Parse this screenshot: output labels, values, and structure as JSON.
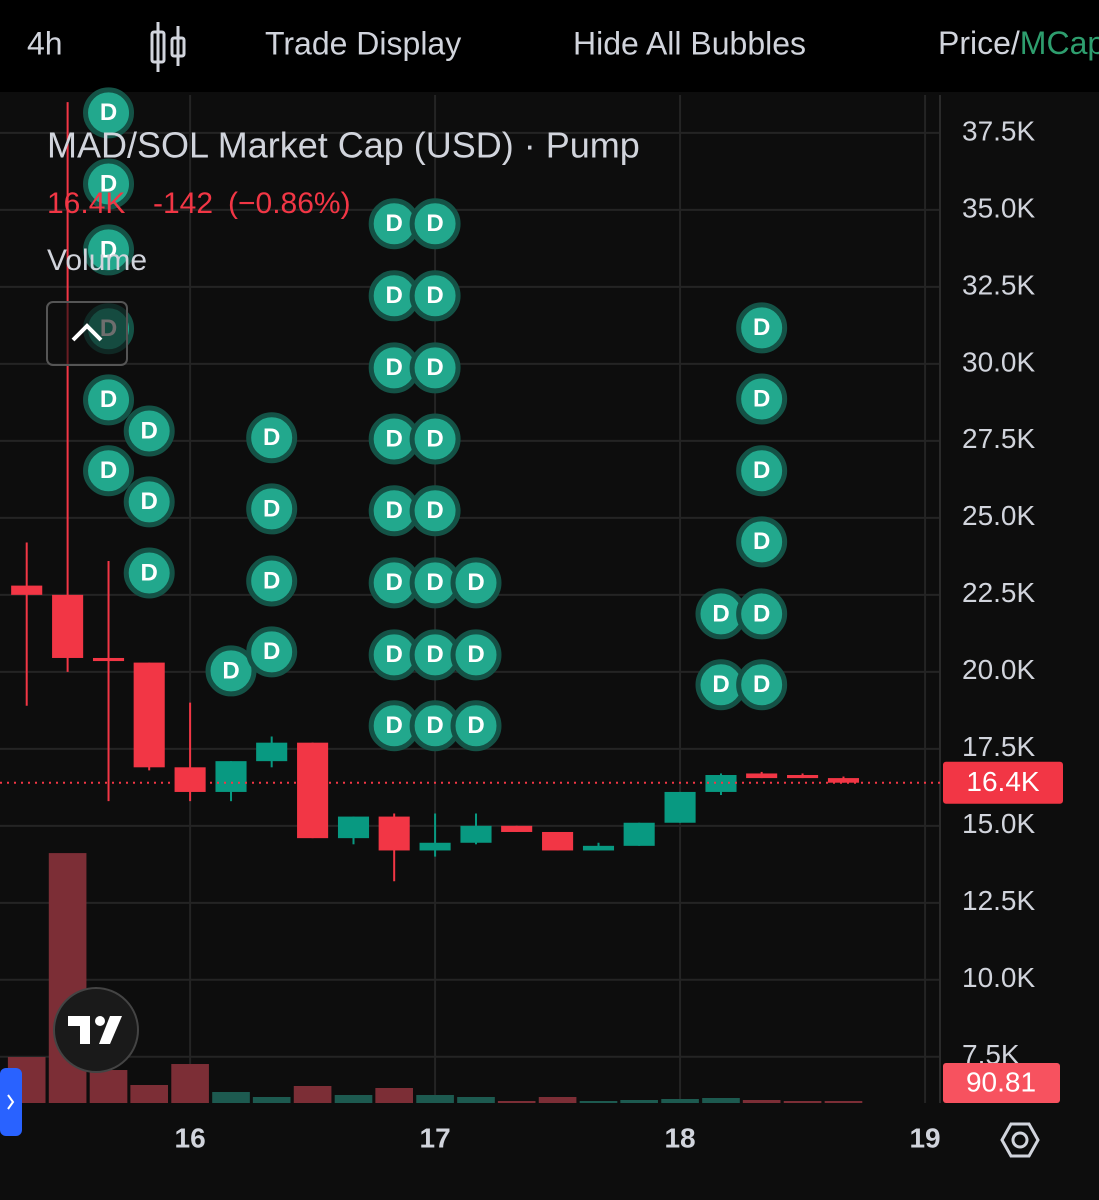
{
  "toolbar": {
    "interval": "4h",
    "trade_display": "Trade Display",
    "hide_bubbles": "Hide All Bubbles",
    "price": "Price/",
    "mcap": "MCap"
  },
  "chart_data": {
    "type": "candlestick",
    "title": "MAD/SOL Market Cap (USD) · Pump",
    "last_change": "-142",
    "last_change_pct": "(−0.86%)",
    "volume_title": "Volume",
    "up_color": "#089981",
    "down_color": "#f23645",
    "volume_up_color": "#1d5a50",
    "volume_down_color": "#7c2e36",
    "bubble_color": "#22a88d",
    "x": [
      15.333,
      15.5,
      15.667,
      15.833,
      16,
      16.167,
      16.333,
      16.5,
      16.667,
      16.833,
      17,
      17.167,
      17.333,
      17.5,
      17.667,
      17.833,
      18,
      18.167,
      18.333,
      18.5,
      18.667
    ],
    "open": [
      22.8,
      22.5,
      20.45,
      20.3,
      16.9,
      16.1,
      17.1,
      17.7,
      14.6,
      15.3,
      14.2,
      14.45,
      15.0,
      14.8,
      14.2,
      14.35,
      15.1,
      16.1,
      16.7,
      16.65,
      16.55
    ],
    "high": [
      24.2,
      38.5,
      23.6,
      20.3,
      19.0,
      17.1,
      17.9,
      17.7,
      15.3,
      15.4,
      15.4,
      15.4,
      15.0,
      14.8,
      14.45,
      15.1,
      16.1,
      16.7,
      16.75,
      16.7,
      16.6
    ],
    "low": [
      18.9,
      20.0,
      15.8,
      16.8,
      15.8,
      15.8,
      16.9,
      14.6,
      14.4,
      13.2,
      14.0,
      14.4,
      14.8,
      14.2,
      14.2,
      14.35,
      15.1,
      16.0,
      16.55,
      16.55,
      16.4
    ],
    "close": [
      22.5,
      20.45,
      20.35,
      16.9,
      16.1,
      17.1,
      17.7,
      14.6,
      15.3,
      14.2,
      14.45,
      15.0,
      14.8,
      14.2,
      14.35,
      15.1,
      16.1,
      16.65,
      16.55,
      16.55,
      16.4
    ],
    "volume": [
      2070,
      11250,
      1485,
      810,
      1755,
      495,
      270,
      765,
      360,
      675,
      360,
      270,
      90,
      270,
      90,
      135,
      180,
      225,
      135,
      90,
      90.81
    ],
    "volume_ylim": [
      0,
      14000
    ],
    "xlim": [
      15.224,
      19.061
    ],
    "xticks": [
      16,
      17,
      18,
      19
    ],
    "ylim": [
      6.0,
      38.73
    ],
    "yticks": [
      {
        "value": 7.5,
        "label": "7.5K"
      },
      {
        "value": 10,
        "label": "10.0K"
      },
      {
        "value": 12.5,
        "label": "12.5K"
      },
      {
        "value": 15,
        "label": "15.0K"
      },
      {
        "value": 17.5,
        "label": "17.5K"
      },
      {
        "value": 20,
        "label": "20.0K"
      },
      {
        "value": 22.5,
        "label": "22.5K"
      },
      {
        "value": 25,
        "label": "25.0K"
      },
      {
        "value": 27.5,
        "label": "27.5K"
      },
      {
        "value": 30,
        "label": "30.0K"
      },
      {
        "value": 32.5,
        "label": "32.5K"
      },
      {
        "value": 35,
        "label": "35.0K"
      },
      {
        "value": 37.5,
        "label": "37.5K"
      }
    ],
    "last_price": {
      "value": 16.4,
      "label": "16.4K"
    },
    "grid": true,
    "bubbles": {
      "label": "D",
      "x": [
        15.667,
        15.667,
        15.667,
        15.667,
        15.667,
        15.667,
        15.833,
        15.833,
        15.833,
        16.167,
        16.333,
        16.333,
        16.333,
        16.333,
        16.833,
        16.833,
        16.833,
        16.833,
        16.833,
        16.833,
        16.833,
        16.833,
        17,
        17,
        17,
        17,
        17,
        17,
        17,
        17,
        17.167,
        17.167,
        17.167,
        18.167,
        18.167,
        18.333,
        18.333,
        18.333,
        18.333,
        18.333,
        18.333
      ],
      "y": [
        38.15,
        35.84,
        33.7,
        31.14,
        28.83,
        26.53,
        27.82,
        25.52,
        23.21,
        20.03,
        27.6,
        25.29,
        22.95,
        20.65,
        34.55,
        32.21,
        29.87,
        27.56,
        25.23,
        22.89,
        20.55,
        18.25,
        34.55,
        32.21,
        29.87,
        27.56,
        25.23,
        22.89,
        20.55,
        18.25,
        22.89,
        20.55,
        18.25,
        21.88,
        19.58,
        31.17,
        28.86,
        26.53,
        24.22,
        21.88,
        19.58
      ]
    }
  }
}
